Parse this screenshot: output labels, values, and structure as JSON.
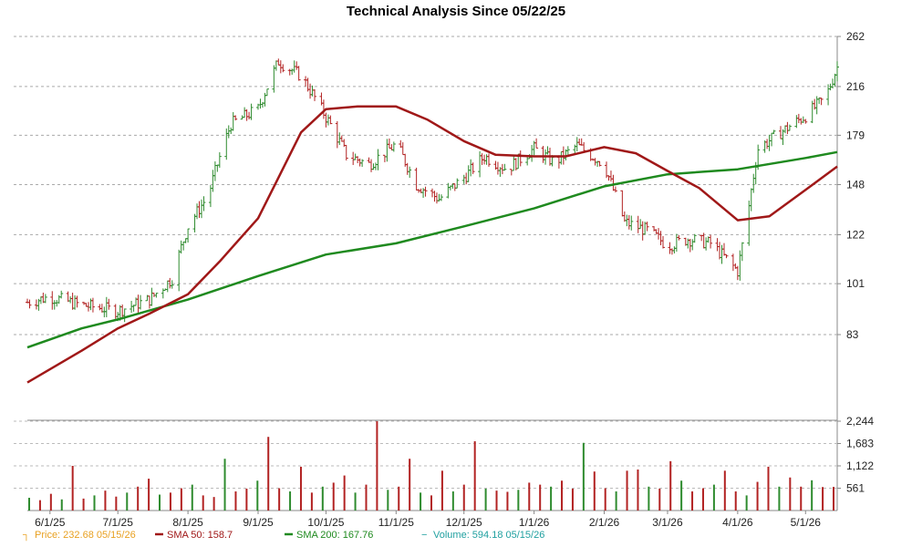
{
  "chart_data": {
    "type": "line",
    "title": "Technical Analysis Since 05/22/25",
    "price_axis": {
      "ticks": [
        "262",
        "216",
        "179",
        "148",
        "122",
        "101",
        "83"
      ],
      "ylim": [
        62,
        262
      ]
    },
    "volume_axis": {
      "ticks": [
        "2,244",
        "1,683",
        "1,122",
        "561"
      ],
      "ylim": [
        0,
        2244
      ]
    },
    "x_ticks": [
      "6/1/25",
      "7/1/25",
      "8/1/25",
      "9/1/25",
      "10/1/25",
      "11/1/25",
      "12/1/25",
      "1/1/26",
      "2/1/26",
      "3/1/26",
      "4/1/26",
      "5/1/26"
    ],
    "x_range": [
      "2025-05-22",
      "2026-05-15"
    ],
    "series": [
      {
        "name": "Price",
        "kind": "ohlc",
        "color_up": "#2e8b2e",
        "color_down": "#b22222",
        "x": [
          "2025-05-22",
          "2025-06-01",
          "2025-06-15",
          "2025-07-01",
          "2025-07-15",
          "2025-07-25",
          "2025-08-01",
          "2025-08-10",
          "2025-08-20",
          "2025-09-01",
          "2025-09-10",
          "2025-09-20",
          "2025-10-01",
          "2025-10-10",
          "2025-10-20",
          "2025-11-01",
          "2025-11-10",
          "2025-11-20",
          "2025-12-01",
          "2025-12-10",
          "2025-12-20",
          "2026-01-01",
          "2026-01-10",
          "2026-01-20",
          "2026-02-01",
          "2026-02-05",
          "2026-02-10",
          "2026-02-20",
          "2026-03-01",
          "2026-03-10",
          "2026-03-20",
          "2026-04-01",
          "2026-04-05",
          "2026-04-10",
          "2026-04-20",
          "2026-05-01",
          "2026-05-10",
          "2026-05-15"
        ],
        "values": [
          94,
          96,
          93,
          91,
          95,
          103,
          126,
          142,
          187,
          198,
          238,
          225,
          192,
          166,
          160,
          173,
          148,
          140,
          152,
          165,
          157,
          170,
          161,
          172,
          160,
          145,
          128,
          124,
          117,
          120,
          118,
          106,
          128,
          170,
          181,
          193,
          207,
          232.68
        ]
      },
      {
        "name": "SMA 50",
        "color": "#a01818",
        "label_value": "158.7",
        "x": [
          "2025-05-22",
          "2025-06-15",
          "2025-07-01",
          "2025-07-15",
          "2025-08-01",
          "2025-08-15",
          "2025-09-01",
          "2025-09-10",
          "2025-09-20",
          "2025-10-01",
          "2025-10-15",
          "2025-11-01",
          "2025-11-15",
          "2025-12-01",
          "2025-12-15",
          "2026-01-01",
          "2026-01-15",
          "2026-02-01",
          "2026-02-15",
          "2026-03-01",
          "2026-03-15",
          "2026-04-01",
          "2026-04-15",
          "2026-05-01",
          "2026-05-15"
        ],
        "values": [
          69,
          78,
          85,
          90,
          97,
          110,
          130,
          152,
          181,
          198,
          200,
          200,
          190,
          175,
          166,
          165,
          165,
          171,
          167,
          156,
          146,
          129,
          131,
          145,
          158.7
        ]
      },
      {
        "name": "SMA 200",
        "color": "#1f8a1f",
        "label_value": "167.76",
        "x": [
          "2025-05-22",
          "2025-06-15",
          "2025-07-01",
          "2025-08-01",
          "2025-09-01",
          "2025-10-01",
          "2025-11-01",
          "2025-12-01",
          "2026-01-01",
          "2026-02-01",
          "2026-03-01",
          "2026-04-01",
          "2026-05-01",
          "2026-05-15"
        ],
        "values": [
          79,
          85,
          88,
          95,
          104,
          113,
          118,
          126,
          135,
          147,
          154,
          157,
          164,
          167.76
        ]
      },
      {
        "name": "Volume",
        "kind": "bar",
        "color_up": "#2e8b2e",
        "color_down": "#b22222",
        "label_value": "594.18",
        "values": [
          320,
          260,
          420,
          280,
          1122,
          300,
          380,
          500,
          350,
          450,
          600,
          800,
          400,
          450,
          560,
          650,
          380,
          340,
          1300,
          480,
          550,
          750,
          1850,
          560,
          480,
          1100,
          450,
          600,
          700,
          880,
          450,
          650,
          2244,
          520,
          600,
          1300,
          450,
          380,
          1000,
          480,
          650,
          1740,
          550,
          500,
          470,
          520,
          700,
          650,
          600,
          750,
          550,
          1700,
          980,
          560,
          480,
          1000,
          1030,
          600,
          550,
          1240,
          750,
          480,
          560,
          650,
          1000,
          480,
          380,
          720,
          1100,
          600,
          830,
          600,
          760,
          590,
          594.18
        ]
      }
    ],
    "legend": [
      {
        "label": "Price: 232.68  05/15/26",
        "color": "#e8a020",
        "symbol": "┐"
      },
      {
        "label": "SMA 50: 158.7",
        "color": "#a01818",
        "symbol": "line"
      },
      {
        "label": "SMA 200: 167.76",
        "color": "#1f8a1f",
        "symbol": "line"
      },
      {
        "label": "Volume: 594.18  05/15/26",
        "color": "#20a0a0",
        "symbol": "−"
      }
    ]
  }
}
